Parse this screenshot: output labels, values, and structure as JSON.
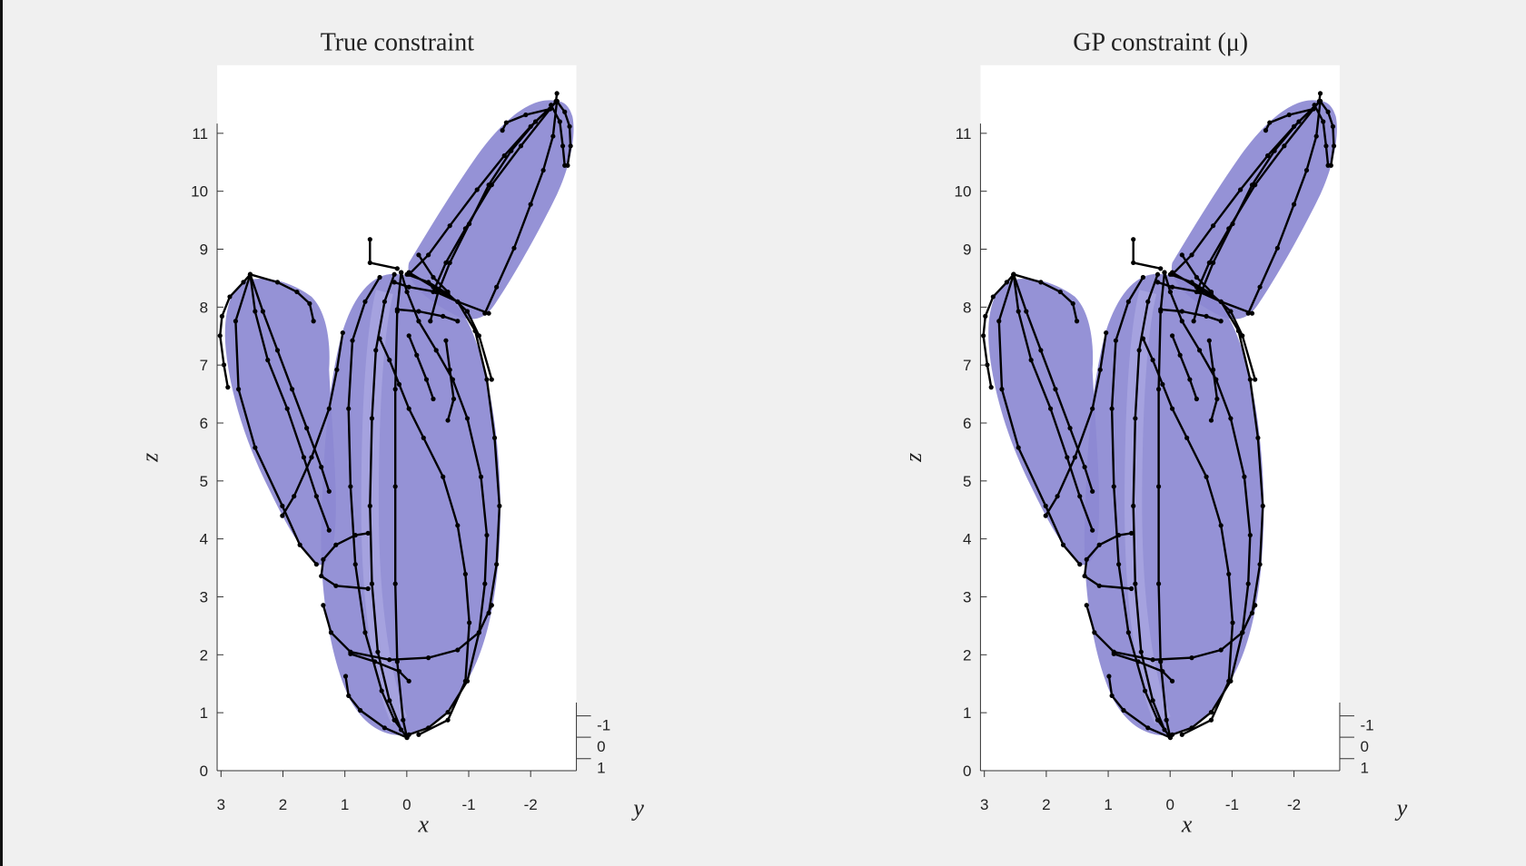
{
  "chart_data": [
    {
      "type": "3d-surface",
      "title": "True constraint",
      "xlabel": "x",
      "ylabel": "y",
      "zlabel": "z",
      "x_ticks": [
        "3",
        "2",
        "1",
        "0",
        "-1",
        "-2"
      ],
      "y_ticks": [
        "-1",
        "0",
        "1"
      ],
      "z_ticks": [
        "0",
        "1",
        "2",
        "3",
        "4",
        "5",
        "6",
        "7",
        "8",
        "9",
        "10",
        "11"
      ],
      "xlim": [
        -2.8,
        3.1
      ],
      "ylim": [
        -1,
        1
      ],
      "zlim": [
        0,
        12
      ],
      "grid": false,
      "series": [
        {
          "name": "",
          "kind": "surface",
          "color": "#8c89d2"
        },
        {
          "name": "",
          "kind": "trajectories",
          "color": "#000000"
        }
      ]
    },
    {
      "type": "3d-surface",
      "title": "GP constraint (μ)",
      "xlabel": "x",
      "ylabel": "y",
      "zlabel": "z",
      "x_ticks": [
        "3",
        "2",
        "1",
        "0",
        "-1",
        "-2"
      ],
      "y_ticks": [
        "-1",
        "0",
        "1"
      ],
      "z_ticks": [
        "0",
        "1",
        "2",
        "3",
        "4",
        "5",
        "6",
        "7",
        "8",
        "9",
        "10",
        "11"
      ],
      "xlim": [
        -2.8,
        3.1
      ],
      "ylim": [
        -1,
        1
      ],
      "zlim": [
        0,
        12
      ],
      "grid": false,
      "series": [
        {
          "name": "",
          "kind": "surface",
          "color": "#8c89d2"
        },
        {
          "name": "",
          "kind": "trajectories",
          "color": "#000000"
        }
      ]
    }
  ]
}
